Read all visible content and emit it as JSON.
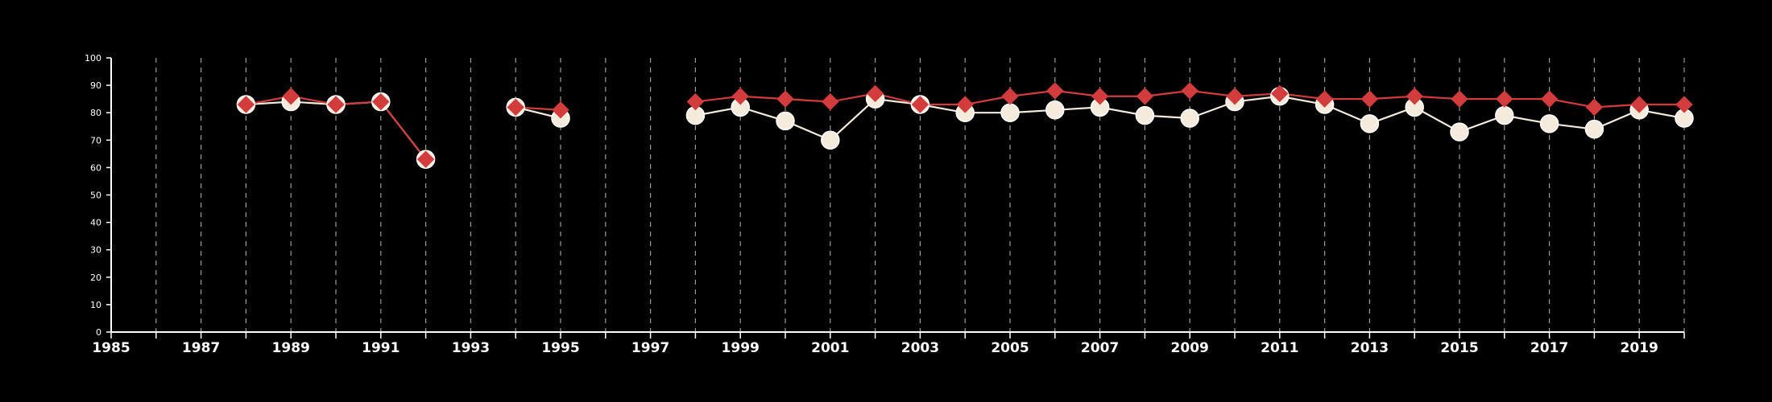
{
  "chart_data": {
    "type": "line",
    "title": "",
    "xlabel": "",
    "ylabel": "",
    "xlim": [
      1985,
      2020
    ],
    "ylim": [
      0,
      100
    ],
    "y_ticks": [
      0,
      10,
      20,
      30,
      40,
      50,
      60,
      70,
      80,
      90,
      100
    ],
    "x_tick_labels": [
      1985,
      1987,
      1989,
      1991,
      1993,
      1995,
      1997,
      1999,
      2001,
      2003,
      2005,
      2007,
      2009,
      2011,
      2013,
      2015,
      2017,
      2019
    ],
    "x_minor_ticks": [
      1986,
      1987,
      1988,
      1989,
      1990,
      1991,
      1992,
      1993,
      1994,
      1995,
      1996,
      1997,
      1998,
      1999,
      2000,
      2001,
      2002,
      2003,
      2004,
      2005,
      2006,
      2007,
      2008,
      2009,
      2010,
      2011,
      2012,
      2013,
      2014,
      2015,
      2016,
      2017,
      2018,
      2019,
      2020
    ],
    "vertical_gridlines": "dashed, every year",
    "legend": "none",
    "background": "#000000",
    "series": [
      {
        "marker": "circle",
        "color": "#f5ebdc",
        "x": [
          1988,
          1989,
          1990,
          1991,
          1992,
          1994,
          1995,
          1998,
          1999,
          2000,
          2001,
          2002,
          2003,
          2004,
          2005,
          2006,
          2007,
          2008,
          2009,
          2010,
          2011,
          2012,
          2013,
          2014,
          2015,
          2016,
          2017,
          2018,
          2019,
          2020
        ],
        "values": [
          83,
          84,
          83,
          84,
          63,
          82,
          78,
          79,
          82,
          77,
          70,
          85,
          83,
          80,
          80,
          81,
          82,
          79,
          78,
          84,
          86,
          83,
          76,
          82,
          73,
          79,
          76,
          74,
          81,
          78
        ]
      },
      {
        "marker": "diamond",
        "color": "#d23c3c",
        "x": [
          1988,
          1989,
          1990,
          1991,
          1992,
          1994,
          1995,
          1998,
          1999,
          2000,
          2001,
          2002,
          2003,
          2004,
          2005,
          2006,
          2007,
          2008,
          2009,
          2010,
          2011,
          2012,
          2013,
          2014,
          2015,
          2016,
          2017,
          2018,
          2019,
          2020
        ],
        "values": [
          83,
          86,
          83,
          84,
          63,
          82,
          81,
          84,
          86,
          85,
          84,
          87,
          83,
          83,
          86,
          88,
          86,
          86,
          88,
          86,
          87,
          85,
          85,
          86,
          85,
          85,
          85,
          82,
          83,
          83
        ]
      }
    ]
  }
}
